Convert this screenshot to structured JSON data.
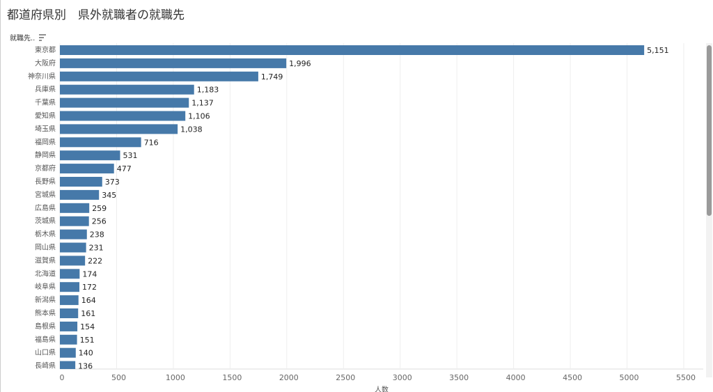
{
  "chart_data": {
    "type": "bar",
    "orientation": "horizontal",
    "title": "都道府県別　県外就職者の就職先",
    "y_label": "就職先..",
    "x_label": "人数",
    "categories": [
      "東京都",
      "大阪府",
      "神奈川県",
      "兵庫県",
      "千葉県",
      "愛知県",
      "埼玉県",
      "福岡県",
      "静岡県",
      "京都府",
      "長野県",
      "宮城県",
      "広島県",
      "茨城県",
      "栃木県",
      "岡山県",
      "滋賀県",
      "北海道",
      "岐阜県",
      "新潟県",
      "熊本県",
      "島根県",
      "福島県",
      "山口県",
      "長崎県"
    ],
    "values": [
      5151,
      1996,
      1749,
      1183,
      1137,
      1106,
      1038,
      716,
      531,
      477,
      373,
      345,
      259,
      256,
      238,
      231,
      222,
      174,
      172,
      164,
      161,
      154,
      151,
      140,
      136
    ],
    "value_labels": [
      "5,151",
      "1,996",
      "1,749",
      "1,183",
      "1,137",
      "1,106",
      "1,038",
      "716",
      "531",
      "477",
      "373",
      "345",
      "259",
      "256",
      "238",
      "231",
      "222",
      "174",
      "172",
      "164",
      "161",
      "154",
      "151",
      "140",
      "136"
    ],
    "color": "#4679a9",
    "xlim": [
      0,
      5500
    ],
    "xticks": [
      0,
      500,
      1000,
      1500,
      2000,
      2500,
      3000,
      3500,
      4000,
      4500,
      5000,
      5500
    ],
    "grid": true
  }
}
